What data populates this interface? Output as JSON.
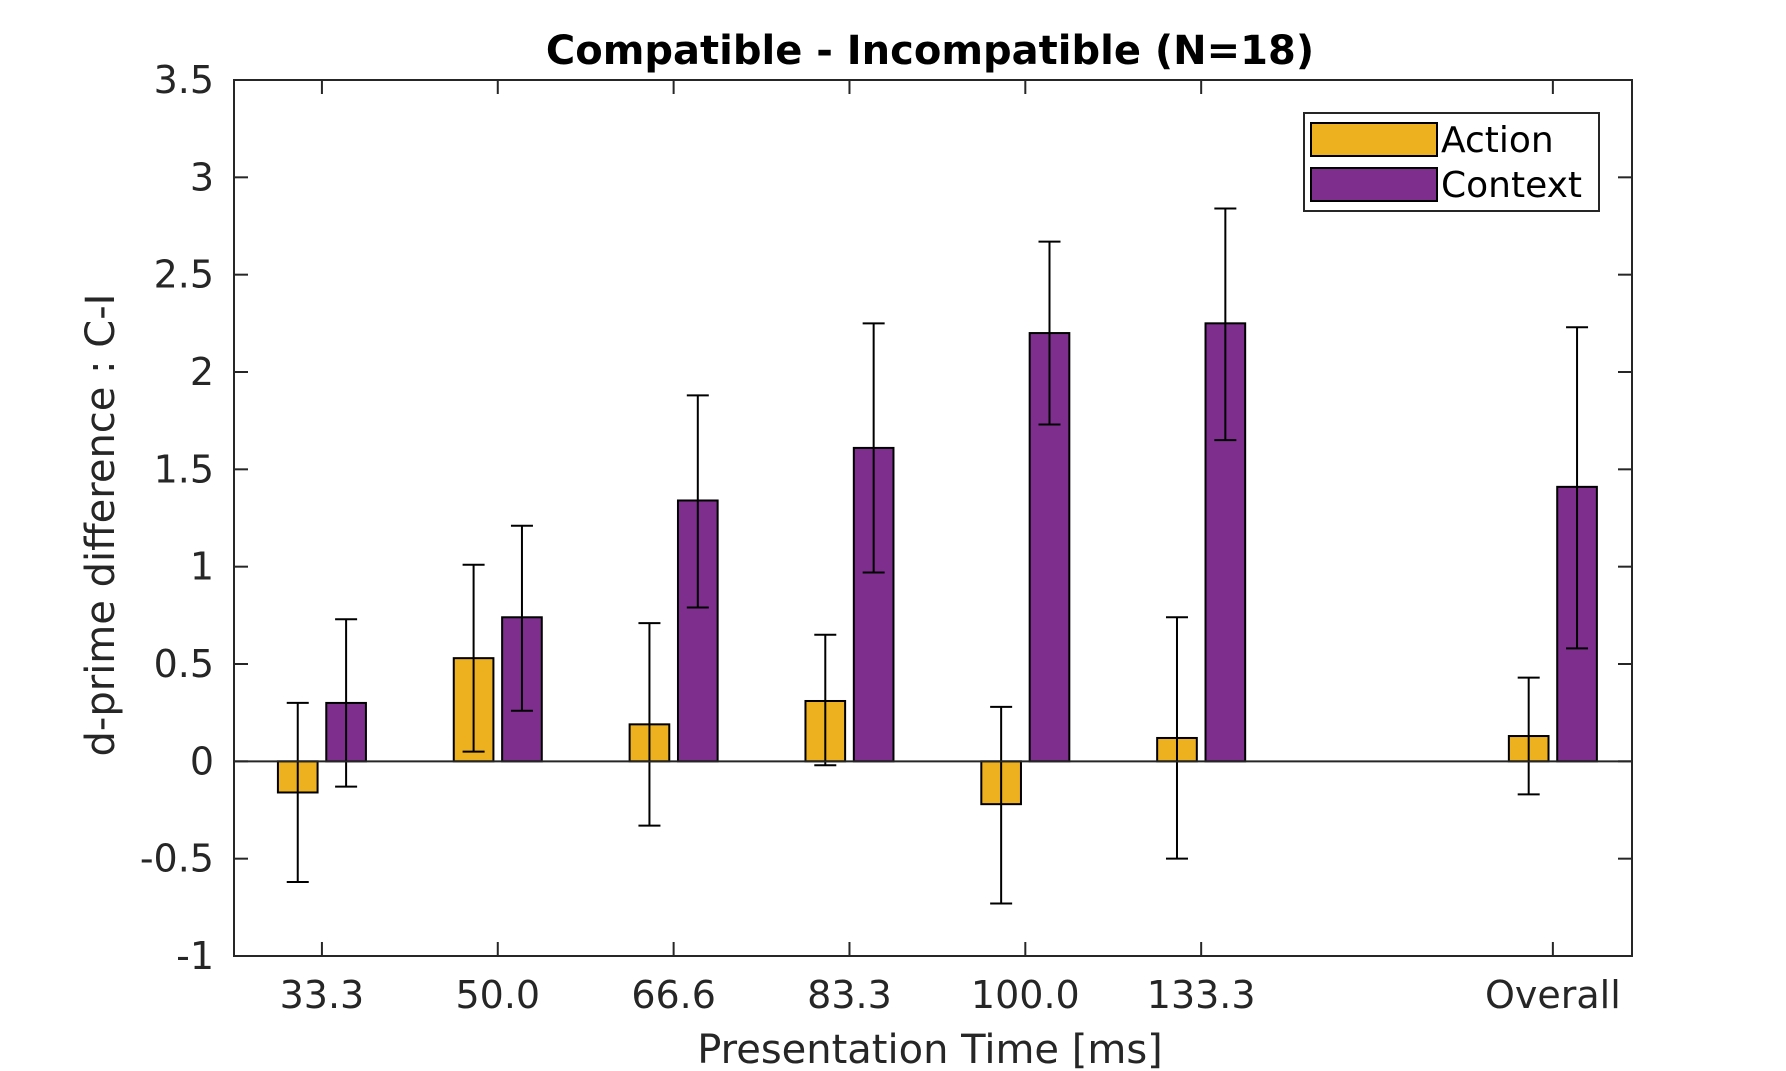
{
  "chart_data": {
    "type": "bar",
    "title": "Compatible - Incompatible (N=18)",
    "xlabel": "Presentation Time [ms]",
    "ylabel": "d-prime difference : C-I",
    "ylim": [
      -1,
      3.5
    ],
    "yticks": [
      -1,
      -0.5,
      0,
      0.5,
      1,
      1.5,
      2,
      2.5,
      3,
      3.5
    ],
    "ytick_labels": [
      "-1",
      "-0.5",
      "0",
      "0.5",
      "1",
      "1.5",
      "2",
      "2.5",
      "3",
      "3.5"
    ],
    "categories": [
      "33.3",
      "50.0",
      "66.6",
      "83.3",
      "100.0",
      "133.3",
      "Overall"
    ],
    "category_positions": [
      1,
      2,
      3,
      4,
      5,
      6,
      8
    ],
    "xlim": [
      0.5,
      8.45
    ],
    "legend_position": "top-right",
    "grid": false,
    "series": [
      {
        "name": "Action",
        "color": "#EDB120",
        "values": [
          -0.16,
          0.53,
          0.19,
          0.31,
          -0.22,
          0.12,
          0.13
        ],
        "error_low": [
          -0.62,
          0.05,
          -0.33,
          -0.02,
          -0.73,
          -0.5,
          -0.17
        ],
        "error_high": [
          0.3,
          1.01,
          0.71,
          0.65,
          0.28,
          0.74,
          0.43
        ]
      },
      {
        "name": "Context",
        "color": "#7E2F8E",
        "values": [
          0.3,
          0.74,
          1.34,
          1.61,
          2.2,
          2.25,
          1.41
        ],
        "error_low": [
          -0.13,
          0.26,
          0.79,
          0.97,
          1.73,
          1.65,
          0.58
        ],
        "error_high": [
          0.73,
          1.21,
          1.88,
          2.25,
          2.67,
          2.84,
          2.23
        ]
      }
    ]
  }
}
